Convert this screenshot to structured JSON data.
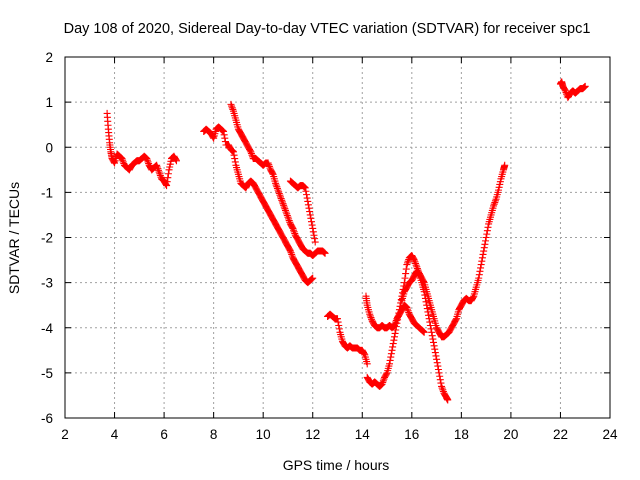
{
  "chart_data": {
    "type": "scatter",
    "title": "Day 108 of 2020, Sidereal Day-to-day VTEC variation (SDTVAR) for receiver spc1",
    "xlabel": "GPS time / hours",
    "ylabel": "SDTVAR / TECUs",
    "xlim": [
      2,
      24
    ],
    "ylim": [
      -6,
      2
    ],
    "xticks": [
      "2",
      "4",
      "6",
      "8",
      "10",
      "12",
      "14",
      "16",
      "18",
      "20",
      "22",
      "24"
    ],
    "yticks": [
      "-6",
      "-5",
      "-4",
      "-3",
      "-2",
      "-1",
      "0",
      "1",
      "2"
    ],
    "grid": true,
    "legend": "none",
    "marker": "+",
    "marker_color": "#ff0000",
    "series": [
      {
        "segments": [
          {
            "x": [
              3.7,
              3.75,
              3.8,
              3.85,
              3.9,
              4.0,
              4.1,
              4.2,
              4.3,
              4.4,
              4.5,
              4.6,
              4.7,
              4.8,
              4.9,
              5.0,
              5.1,
              5.2,
              5.3,
              5.4,
              5.5,
              5.6,
              5.7,
              5.8,
              5.9,
              6.0,
              6.1,
              6.2,
              6.3,
              6.4,
              6.5
            ],
            "y": [
              0.75,
              0.4,
              0.1,
              -0.1,
              -0.25,
              -0.35,
              -0.15,
              -0.2,
              -0.25,
              -0.4,
              -0.45,
              -0.5,
              -0.4,
              -0.35,
              -0.3,
              -0.3,
              -0.25,
              -0.2,
              -0.25,
              -0.4,
              -0.5,
              -0.45,
              -0.4,
              -0.55,
              -0.7,
              -0.75,
              -0.85,
              -0.5,
              -0.25,
              -0.2,
              -0.3
            ]
          },
          {
            "x": [
              7.6,
              7.7,
              7.8,
              7.9,
              8.0,
              8.1,
              8.2,
              8.3,
              8.4,
              8.5,
              8.6,
              8.7,
              8.8,
              8.9,
              9.0,
              9.1,
              9.2,
              9.3,
              9.4,
              9.5,
              9.6,
              9.7,
              9.8,
              9.9,
              10.0,
              10.1,
              10.2,
              10.3,
              10.4,
              10.5,
              10.6,
              10.7,
              10.8,
              10.9,
              11.0,
              11.1,
              11.2,
              11.3,
              11.4,
              11.5,
              11.6,
              11.7,
              11.8,
              11.9,
              12.0
            ],
            "y": [
              0.35,
              0.4,
              0.35,
              0.3,
              0.2,
              0.4,
              0.45,
              0.4,
              0.35,
              0.05,
              0.05,
              -0.05,
              -0.1,
              -0.4,
              -0.6,
              -0.8,
              -0.85,
              -0.9,
              -0.8,
              -0.75,
              -0.8,
              -0.9,
              -1.0,
              -1.1,
              -1.2,
              -1.3,
              -1.4,
              -1.5,
              -1.6,
              -1.7,
              -1.8,
              -1.9,
              -2.0,
              -2.1,
              -2.2,
              -2.3,
              -2.45,
              -2.55,
              -2.65,
              -2.75,
              -2.85,
              -2.95,
              -3.0,
              -2.95,
              -2.9
            ]
          },
          {
            "x": [
              8.7,
              8.8,
              8.9,
              9.0,
              9.1,
              9.2,
              9.3,
              9.4,
              9.5,
              9.6,
              9.7,
              9.8,
              9.9,
              10.0,
              10.1,
              10.2,
              10.3,
              10.4,
              10.5,
              10.6,
              10.7,
              10.8,
              10.9,
              11.0,
              11.1,
              11.2,
              11.3,
              11.4,
              11.5,
              11.6,
              11.7,
              11.8,
              11.9,
              12.0,
              12.1,
              12.2,
              12.3,
              12.4,
              12.5
            ],
            "y": [
              0.95,
              0.8,
              0.6,
              0.4,
              0.3,
              0.2,
              0.1,
              0.0,
              -0.1,
              -0.25,
              -0.25,
              -0.3,
              -0.35,
              -0.4,
              -0.35,
              -0.35,
              -0.5,
              -0.6,
              -0.8,
              -0.95,
              -1.1,
              -1.25,
              -1.4,
              -1.55,
              -1.7,
              -1.8,
              -1.95,
              -2.05,
              -2.15,
              -2.25,
              -2.3,
              -2.35,
              -2.35,
              -2.4,
              -2.35,
              -2.3,
              -2.3,
              -2.3,
              -2.35
            ]
          },
          {
            "x": [
              11.1,
              11.2,
              11.3,
              11.4,
              11.5,
              11.6,
              11.7,
              11.8,
              11.9,
              12.0,
              12.1
            ],
            "y": [
              -0.75,
              -0.8,
              -0.85,
              -0.9,
              -0.85,
              -0.85,
              -0.9,
              -1.2,
              -1.5,
              -1.8,
              -2.1
            ]
          },
          {
            "x": [
              12.6,
              12.7,
              12.8,
              12.9,
              13.0,
              13.1,
              13.2,
              13.3,
              13.4,
              13.5,
              13.6,
              13.7,
              13.8,
              13.9,
              14.0,
              14.1,
              14.2
            ],
            "y": [
              -3.75,
              -3.7,
              -3.75,
              -3.8,
              -3.8,
              -4.1,
              -4.3,
              -4.4,
              -4.45,
              -4.4,
              -4.45,
              -4.45,
              -4.45,
              -4.5,
              -4.5,
              -4.6,
              -4.8
            ]
          },
          {
            "x": [
              14.2,
              14.3,
              14.4,
              14.5,
              14.6,
              14.7,
              14.8,
              14.9,
              15.0,
              15.1,
              15.2,
              15.3,
              15.4,
              15.5,
              15.6,
              15.7,
              15.8,
              15.9,
              16.0,
              16.1,
              16.2,
              16.3,
              16.4,
              16.5,
              16.6,
              16.7,
              16.8,
              16.9,
              17.0,
              17.1,
              17.2,
              17.3,
              17.4,
              17.45
            ],
            "y": [
              -5.1,
              -5.2,
              -5.25,
              -5.2,
              -5.25,
              -5.3,
              -5.25,
              -5.1,
              -5.0,
              -4.8,
              -4.5,
              -4.2,
              -3.9,
              -3.6,
              -3.3,
              -3.0,
              -2.6,
              -2.45,
              -2.4,
              -2.5,
              -2.65,
              -2.8,
              -3.0,
              -3.2,
              -3.5,
              -3.8,
              -4.1,
              -4.4,
              -4.7,
              -5.0,
              -5.3,
              -5.45,
              -5.55,
              -5.6
            ]
          },
          {
            "x": [
              14.15,
              14.2,
              14.3,
              14.4,
              14.5,
              14.6,
              14.7,
              14.8,
              14.9,
              15.0,
              15.1,
              15.2,
              15.3,
              15.4,
              15.5,
              15.6,
              15.7,
              15.8,
              15.9,
              16.0,
              16.1,
              16.2,
              16.3,
              16.4,
              16.5
            ],
            "y": [
              -3.3,
              -3.5,
              -3.7,
              -3.85,
              -3.95,
              -4.0,
              -4.0,
              -3.95,
              -4.0,
              -4.0,
              -3.95,
              -4.0,
              -3.95,
              -3.8,
              -3.7,
              -3.6,
              -3.5,
              -3.55,
              -3.7,
              -3.8,
              -3.9,
              -3.95,
              -4.0,
              -4.05,
              -4.1
            ]
          },
          {
            "x": [
              15.6,
              15.7,
              15.8,
              15.9,
              16.0,
              16.1,
              16.2,
              16.3,
              16.4,
              16.5,
              16.6,
              16.7,
              16.8,
              16.9,
              17.0,
              17.1,
              17.2,
              17.3,
              17.4,
              17.5,
              17.6,
              17.7,
              17.8,
              17.9,
              18.0,
              18.1,
              18.2,
              18.3,
              18.4,
              18.5,
              18.6,
              18.7,
              18.8,
              18.9,
              19.0,
              19.1,
              19.2,
              19.3,
              19.4,
              19.5,
              19.6,
              19.7,
              19.75
            ],
            "y": [
              -3.4,
              -3.2,
              -3.1,
              -3.0,
              -2.95,
              -2.85,
              -2.75,
              -2.8,
              -2.9,
              -3.0,
              -3.2,
              -3.4,
              -3.6,
              -3.8,
              -4.0,
              -4.1,
              -4.2,
              -4.2,
              -4.15,
              -4.1,
              -4.0,
              -3.9,
              -3.8,
              -3.6,
              -3.5,
              -3.4,
              -3.35,
              -3.4,
              -3.4,
              -3.3,
              -3.1,
              -2.9,
              -2.6,
              -2.3,
              -2.0,
              -1.7,
              -1.5,
              -1.3,
              -1.15,
              -0.95,
              -0.7,
              -0.5,
              -0.4
            ]
          },
          {
            "x": [
              22.0,
              22.05,
              22.1,
              22.2,
              22.3,
              22.4,
              22.5,
              22.6,
              22.7,
              22.8,
              22.9,
              23.0
            ],
            "y": [
              1.4,
              1.45,
              1.35,
              1.25,
              1.1,
              1.2,
              1.25,
              1.2,
              1.25,
              1.3,
              1.3,
              1.35
            ]
          }
        ]
      }
    ]
  }
}
